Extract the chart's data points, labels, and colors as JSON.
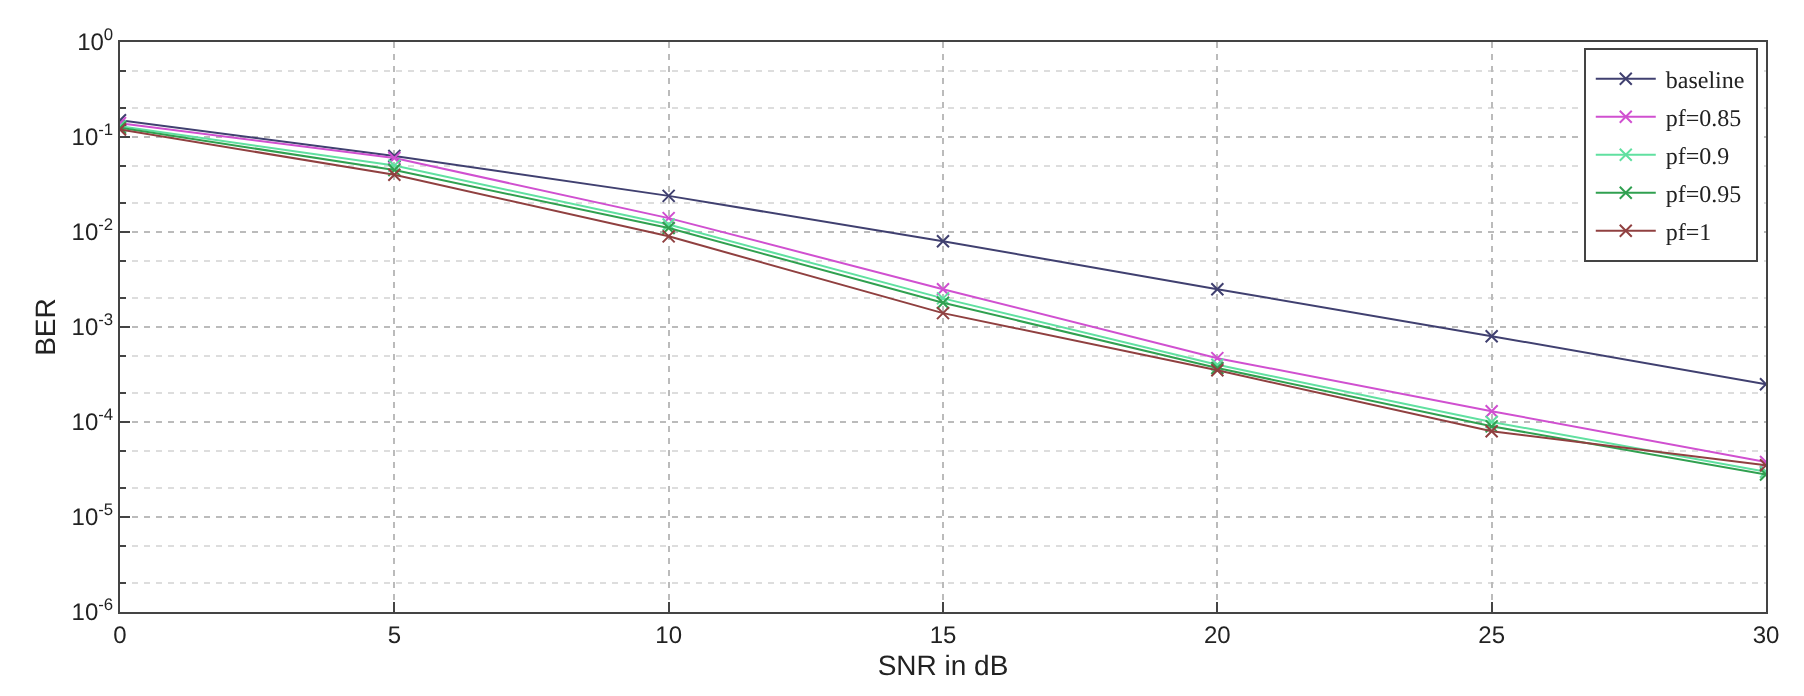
{
  "chart_data": {
    "type": "line",
    "xlabel": "SNR in dB",
    "ylabel": "BER",
    "x": [
      0,
      5,
      10,
      15,
      20,
      25,
      30
    ],
    "series": [
      {
        "name": "baseline",
        "color": "#404070",
        "values": [
          0.15,
          0.063,
          0.024,
          0.008,
          0.0025,
          0.0008,
          0.00025
        ]
      },
      {
        "name": "pf=0.85",
        "color": "#d050d0",
        "values": [
          0.14,
          0.06,
          0.014,
          0.0025,
          0.00047,
          0.00013,
          3.8e-05
        ]
      },
      {
        "name": "pf=0.9",
        "color": "#60e0a0",
        "values": [
          0.13,
          0.05,
          0.012,
          0.002,
          0.0004,
          0.0001,
          3e-05
        ]
      },
      {
        "name": "pf=0.95",
        "color": "#30a050",
        "values": [
          0.125,
          0.045,
          0.011,
          0.0018,
          0.00037,
          9e-05,
          2.8e-05
        ]
      },
      {
        "name": "pf=1",
        "color": "#904040",
        "values": [
          0.12,
          0.04,
          0.009,
          0.0014,
          0.00035,
          8e-05,
          3.5e-05
        ]
      }
    ],
    "xlim": [
      0,
      30
    ],
    "xticks": [
      0,
      5,
      10,
      15,
      20,
      25,
      30
    ],
    "ylim": [
      1e-06,
      1
    ],
    "yticks": [
      {
        "value": 1e-06,
        "label": "10$^{-6}$"
      },
      {
        "value": 1e-05,
        "label": "10$^{-5}$"
      },
      {
        "value": 0.0001,
        "label": "10$^{-4}$"
      },
      {
        "value": 0.001,
        "label": "10$^{-3}$"
      },
      {
        "value": 0.01,
        "label": "10$^{-2}$"
      },
      {
        "value": 0.1,
        "label": "10$^{-1}$"
      },
      {
        "value": 1,
        "label": "10$^{0}$"
      }
    ],
    "log": "y",
    "grid": true,
    "legend": "top right",
    "marker": "cross",
    "line_style": "solid"
  }
}
